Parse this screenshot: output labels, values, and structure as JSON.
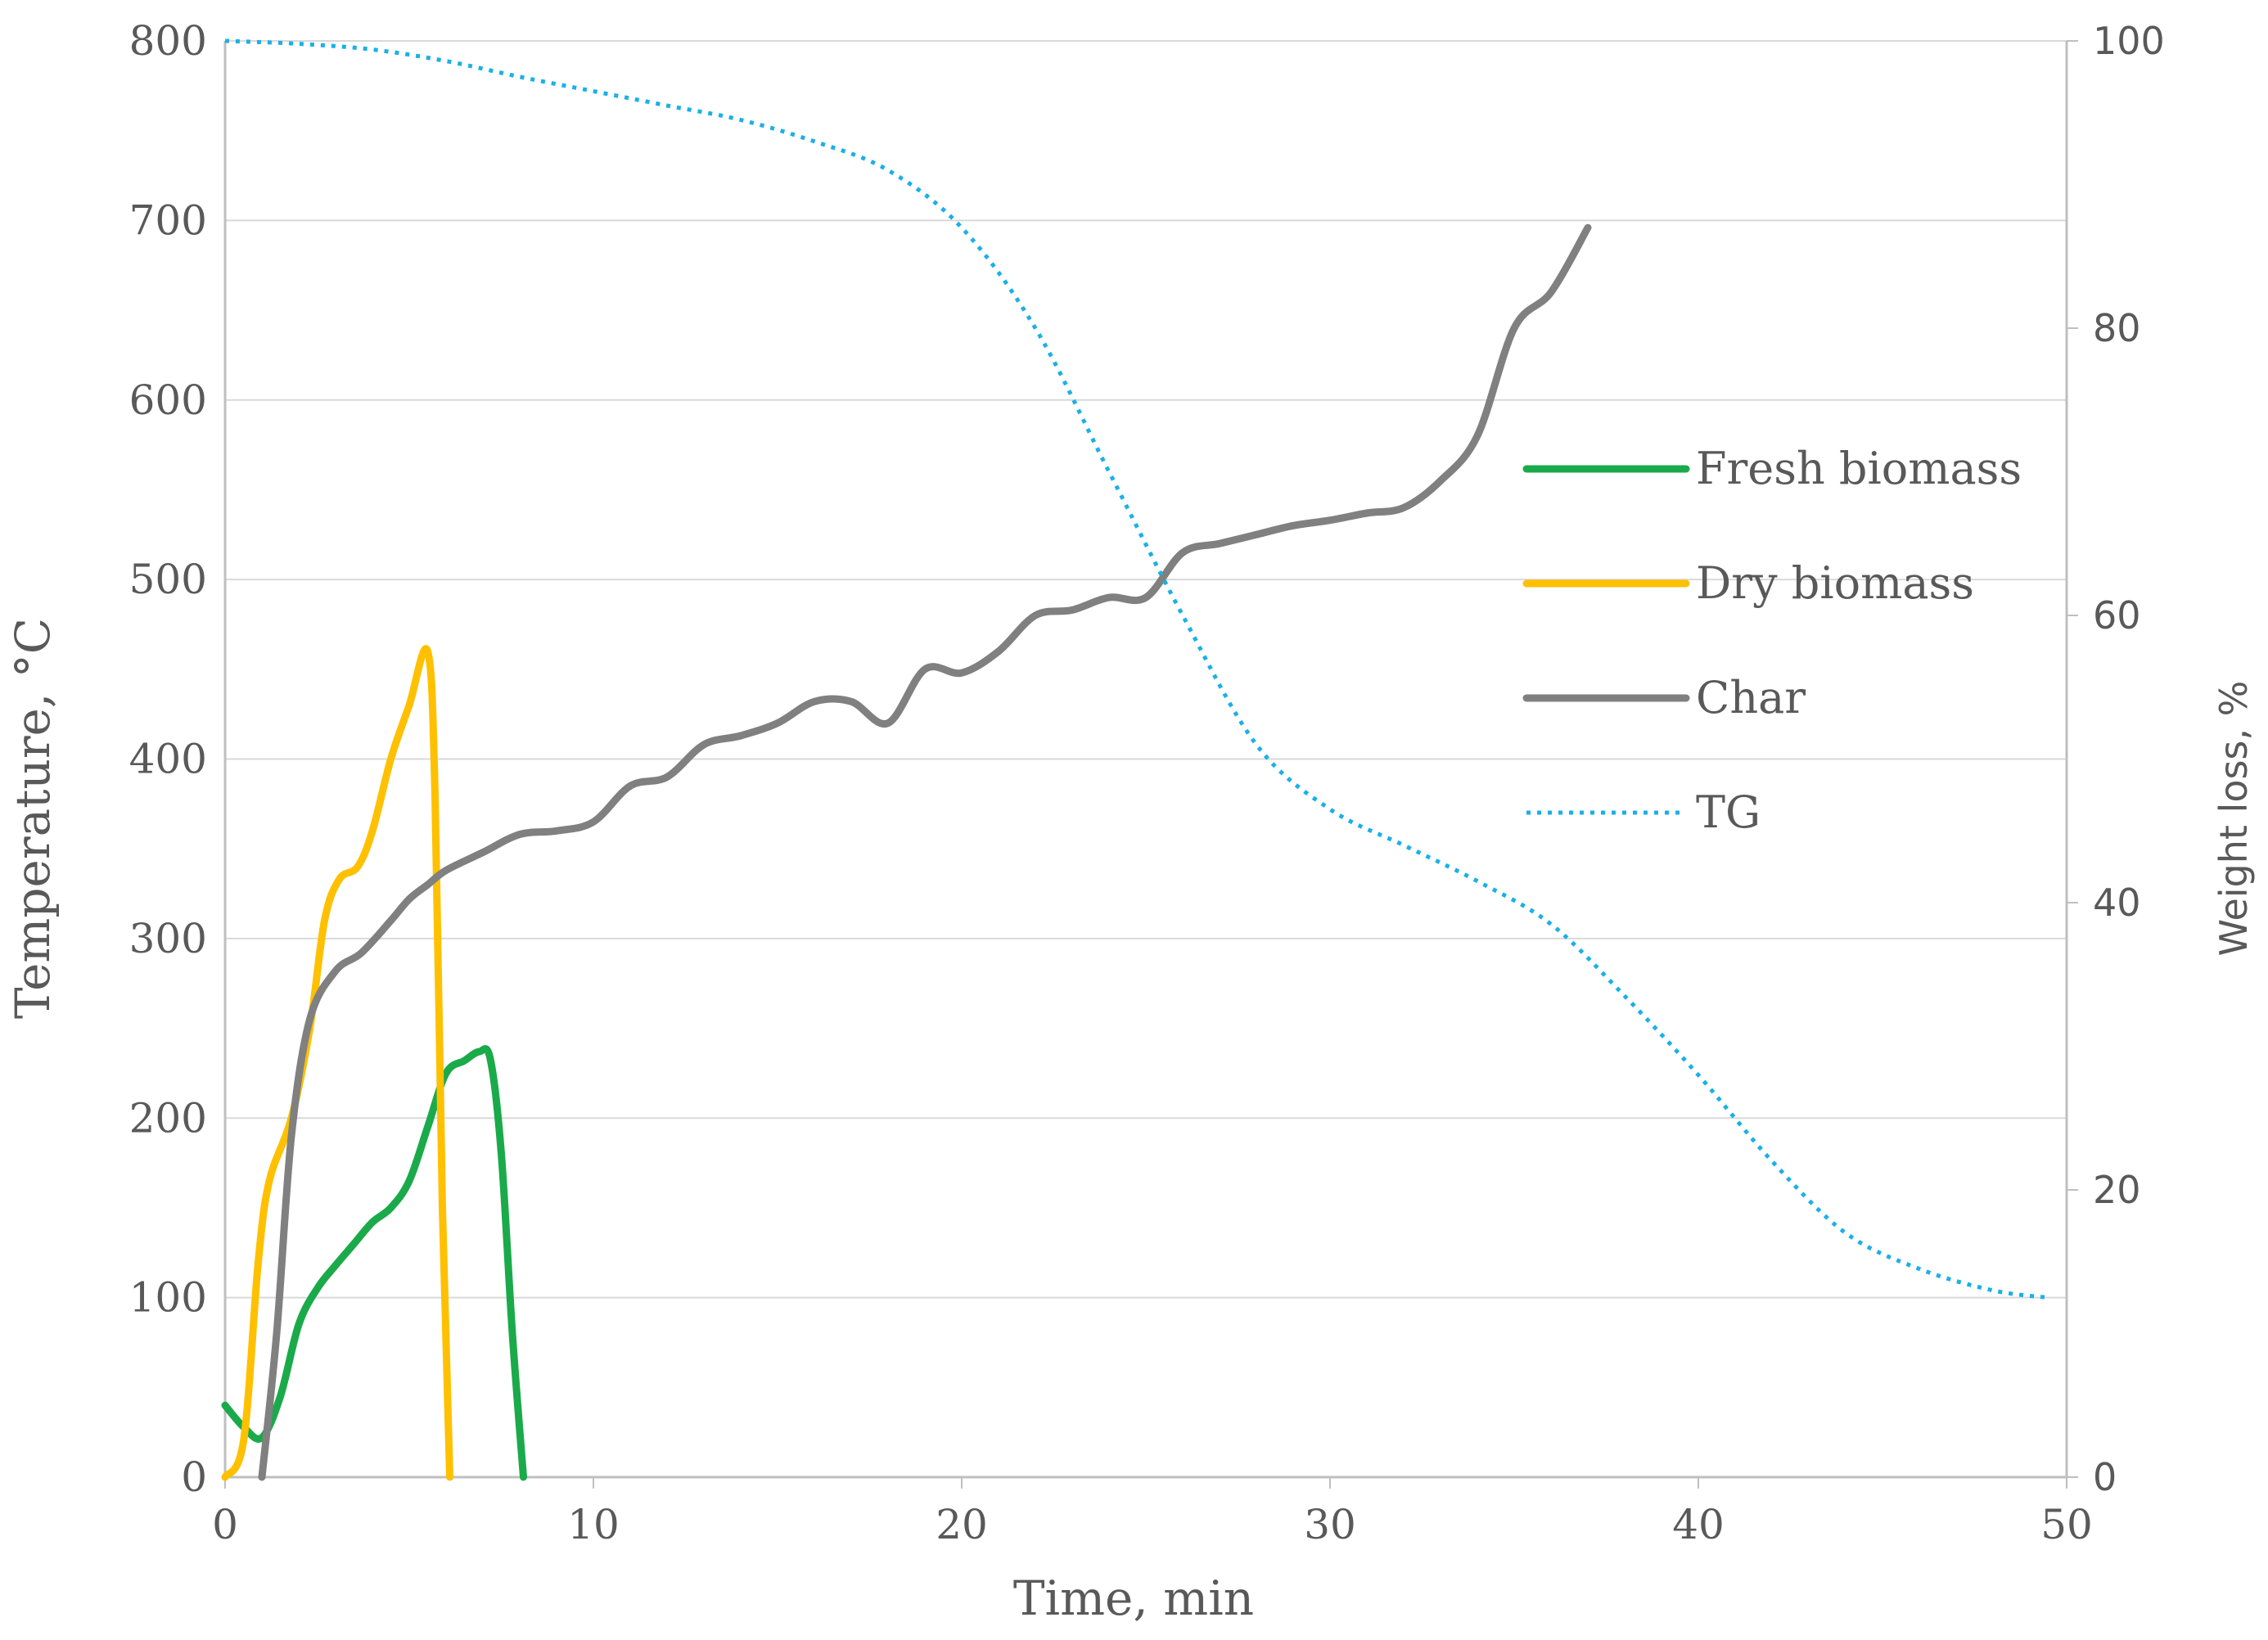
{
  "chart_data": {
    "type": "line",
    "xlabel": "Time, min",
    "ylabel_left": "Temperature, °C",
    "ylabel_right": "Weight loss, %",
    "xlim": [
      0,
      50
    ],
    "ylim_left": [
      0,
      800
    ],
    "ylim_right": [
      0,
      100
    ],
    "x_ticks": [
      "0",
      "10",
      "20",
      "30",
      "40",
      "50"
    ],
    "y_left_ticks": [
      "0",
      "100",
      "200",
      "300",
      "400",
      "500",
      "600",
      "700",
      "800"
    ],
    "y_right_ticks": [
      "0",
      "20",
      "40",
      "60",
      "80",
      "100"
    ],
    "grid": "horizontal",
    "legend_position": "right",
    "series": [
      {
        "name": "Fresh biomass",
        "axis": "left",
        "color": "#1aaa4a",
        "style": "solid",
        "points": [
          [
            0,
            40
          ],
          [
            0.5,
            28
          ],
          [
            1,
            22
          ],
          [
            1.5,
            45
          ],
          [
            2,
            85
          ],
          [
            2.5,
            105
          ],
          [
            3,
            118
          ],
          [
            3.5,
            130
          ],
          [
            4,
            142
          ],
          [
            4.5,
            150
          ],
          [
            5,
            165
          ],
          [
            5.5,
            195
          ],
          [
            6,
            225
          ],
          [
            6.5,
            232
          ],
          [
            6.9,
            237
          ],
          [
            7.2,
            233
          ],
          [
            7.5,
            180
          ],
          [
            7.8,
            80
          ],
          [
            8.1,
            0
          ]
        ]
      },
      {
        "name": "Dry biomass",
        "axis": "left",
        "color": "#ffc000",
        "style": "solid",
        "points": [
          [
            0,
            0
          ],
          [
            0.5,
            20
          ],
          [
            0.9,
            120
          ],
          [
            1.2,
            165
          ],
          [
            1.8,
            200
          ],
          [
            2.3,
            250
          ],
          [
            2.7,
            310
          ],
          [
            3.1,
            333
          ],
          [
            3.6,
            340
          ],
          [
            4,
            360
          ],
          [
            4.5,
            400
          ],
          [
            5,
            430
          ],
          [
            5.5,
            460
          ],
          [
            5.7,
            380
          ],
          [
            5.9,
            150
          ],
          [
            6.1,
            0
          ]
        ]
      },
      {
        "name": "Char",
        "axis": "left",
        "color": "#808080",
        "style": "solid",
        "points": [
          [
            1,
            0
          ],
          [
            1.4,
            80
          ],
          [
            1.8,
            190
          ],
          [
            2.3,
            255
          ],
          [
            3,
            282
          ],
          [
            3.7,
            292
          ],
          [
            4.5,
            310
          ],
          [
            5,
            322
          ],
          [
            5.5,
            330
          ],
          [
            6,
            338
          ],
          [
            7,
            348
          ],
          [
            8,
            358
          ],
          [
            9,
            360
          ],
          [
            10,
            365
          ],
          [
            11,
            385
          ],
          [
            12,
            390
          ],
          [
            13,
            408
          ],
          [
            14,
            413
          ],
          [
            15,
            420
          ],
          [
            16,
            432
          ],
          [
            17,
            432
          ],
          [
            18,
            420
          ],
          [
            19,
            450
          ],
          [
            20,
            448
          ],
          [
            21,
            460
          ],
          [
            22,
            480
          ],
          [
            23,
            483
          ],
          [
            24,
            490
          ],
          [
            25,
            490
          ],
          [
            26,
            515
          ],
          [
            27,
            520
          ],
          [
            28,
            525
          ],
          [
            29,
            530
          ],
          [
            30,
            533
          ],
          [
            31,
            537
          ],
          [
            32,
            540
          ],
          [
            33,
            555
          ],
          [
            34,
            580
          ],
          [
            35,
            640
          ],
          [
            36,
            660
          ],
          [
            37,
            696
          ]
        ]
      },
      {
        "name": "TG",
        "axis": "right",
        "color": "#1ab0e8",
        "style": "dotted",
        "points": [
          [
            0,
            100
          ],
          [
            2,
            99.8
          ],
          [
            4,
            99.4
          ],
          [
            6,
            98.6
          ],
          [
            8,
            97.5
          ],
          [
            10,
            96.5
          ],
          [
            12,
            95.5
          ],
          [
            14,
            94.5
          ],
          [
            16,
            93
          ],
          [
            18,
            91
          ],
          [
            20,
            87
          ],
          [
            22,
            80
          ],
          [
            24,
            70
          ],
          [
            26,
            60
          ],
          [
            28,
            51
          ],
          [
            30,
            46.5
          ],
          [
            32,
            44
          ],
          [
            34,
            41.5
          ],
          [
            36,
            38.5
          ],
          [
            38,
            33.5
          ],
          [
            40,
            28
          ],
          [
            42,
            22
          ],
          [
            44,
            17
          ],
          [
            46,
            14.5
          ],
          [
            48,
            13
          ],
          [
            49.5,
            12.5
          ]
        ]
      }
    ]
  }
}
